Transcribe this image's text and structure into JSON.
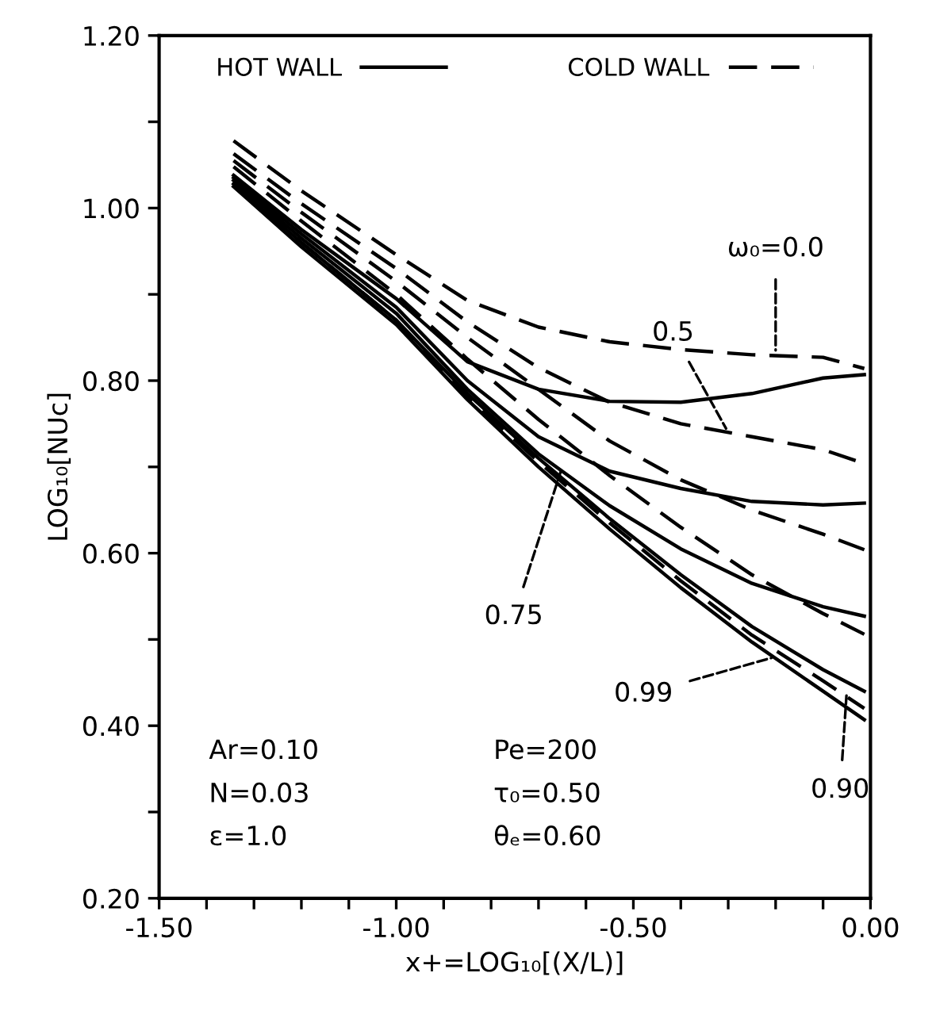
{
  "chart_data": {
    "type": "line",
    "xlabel": "x+=LOG₁₀[(X/L)]",
    "ylabel": "LOG₁₀[NUc]",
    "xlim": [
      -1.5,
      0.0
    ],
    "ylim": [
      0.2,
      1.2
    ],
    "xticks": [
      {
        "value": -1.5,
        "label": "-1.50"
      },
      {
        "value": -1.4,
        "label": null
      },
      {
        "value": -1.3,
        "label": null
      },
      {
        "value": -1.2,
        "label": null
      },
      {
        "value": -1.1,
        "label": null
      },
      {
        "value": -1.0,
        "label": "-1.00"
      },
      {
        "value": -0.9,
        "label": null
      },
      {
        "value": -0.8,
        "label": null
      },
      {
        "value": -0.7,
        "label": null
      },
      {
        "value": -0.6,
        "label": null
      },
      {
        "value": -0.5,
        "label": "-0.50"
      },
      {
        "value": -0.4,
        "label": null
      },
      {
        "value": -0.3,
        "label": null
      },
      {
        "value": -0.2,
        "label": null
      },
      {
        "value": -0.1,
        "label": null
      },
      {
        "value": 0.0,
        "label": "0.00"
      }
    ],
    "yticks": [
      {
        "value": 0.2,
        "label": "0.20"
      },
      {
        "value": 0.3,
        "label": null
      },
      {
        "value": 0.4,
        "label": "0.40"
      },
      {
        "value": 0.5,
        "label": null
      },
      {
        "value": 0.6,
        "label": "0.60"
      },
      {
        "value": 0.7,
        "label": null
      },
      {
        "value": 0.8,
        "label": "0.80"
      },
      {
        "value": 0.9,
        "label": null
      },
      {
        "value": 1.0,
        "label": "1.00"
      },
      {
        "value": 1.1,
        "label": null
      },
      {
        "value": 1.2,
        "label": "1.20"
      }
    ],
    "grid": false,
    "legend": "top",
    "marker": "none",
    "x": [
      -1.343,
      -1.2,
      -1.0,
      -0.85,
      -0.7,
      -0.55,
      -0.4,
      -0.25,
      -0.1,
      -0.013
    ],
    "series": [
      {
        "name": "HOT WALL",
        "color": "#000000",
        "line_style": "solid",
        "values": [
          1.038,
          0.975,
          0.895,
          0.822,
          0.79,
          0.776,
          0.775,
          0.785,
          0.803,
          0.807
        ]
      },
      {
        "name": "COLD WALL",
        "color": "#000000",
        "line_style": "dashed",
        "values": [
          1.078,
          1.02,
          0.946,
          0.893,
          0.862,
          0.845,
          0.836,
          0.83,
          0.827,
          0.814
        ]
      },
      {
        "color": "#000000",
        "line_style": "solid",
        "values": [
          1.035,
          0.97,
          0.885,
          0.8,
          0.735,
          0.695,
          0.675,
          0.66,
          0.656,
          0.658
        ]
      },
      {
        "color": "#000000",
        "line_style": "dashed",
        "values": [
          1.063,
          1.005,
          0.93,
          0.868,
          0.815,
          0.775,
          0.75,
          0.735,
          0.72,
          0.704
        ]
      },
      {
        "color": "#000000",
        "line_style": "solid",
        "values": [
          1.032,
          0.965,
          0.878,
          0.79,
          0.715,
          0.655,
          0.605,
          0.565,
          0.538,
          0.527
        ]
      },
      {
        "color": "#000000",
        "line_style": "dashed",
        "values": [
          1.055,
          0.995,
          0.915,
          0.85,
          0.79,
          0.73,
          0.685,
          0.65,
          0.622,
          0.604
        ]
      },
      {
        "color": "#000000",
        "line_style": "solid",
        "values": [
          1.028,
          0.96,
          0.87,
          0.785,
          0.71,
          0.64,
          0.575,
          0.515,
          0.465,
          0.44
        ]
      },
      {
        "color": "#000000",
        "line_style": "dashed",
        "values": [
          1.048,
          0.985,
          0.9,
          0.825,
          0.755,
          0.69,
          0.63,
          0.575,
          0.53,
          0.506
        ]
      },
      {
        "color": "#000000",
        "line_style": "solid",
        "values": [
          1.025,
          0.955,
          0.865,
          0.778,
          0.7,
          0.628,
          0.56,
          0.497,
          0.44,
          0.407
        ]
      },
      {
        "color": "#000000",
        "line_style": "dashed",
        "values": [
          1.03,
          0.96,
          0.87,
          0.782,
          0.706,
          0.635,
          0.568,
          0.505,
          0.452,
          0.42
        ]
      }
    ],
    "annotations": [
      {
        "text": "ω₀=0.0",
        "x": -0.2,
        "y": 0.83
      },
      {
        "text": "0.5",
        "x": -0.3,
        "y": 0.74
      },
      {
        "text": "0.75",
        "x": -0.65,
        "y": 0.7
      },
      {
        "text": "0.99",
        "x": -0.2,
        "y": 0.48
      },
      {
        "text": "0.90",
        "x": -0.05,
        "y": 0.44
      },
      "Ar=0.10",
      "N=0.03",
      "ε=1.0",
      "Pe=200",
      "τ₀=0.50",
      "θₑ=0.60"
    ]
  }
}
